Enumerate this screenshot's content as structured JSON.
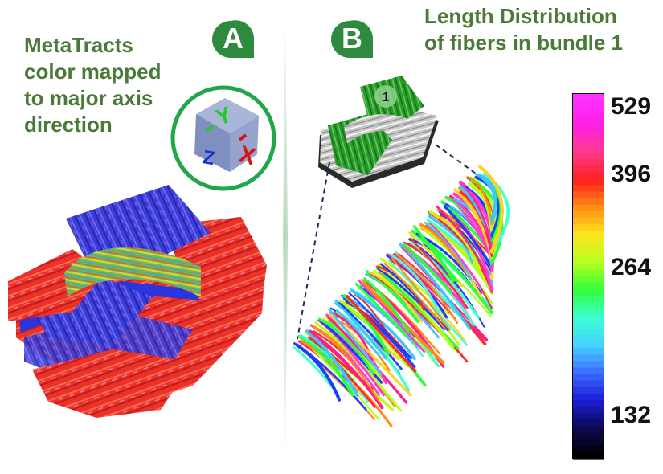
{
  "panel_a": {
    "badge": "A",
    "title_lines": [
      "MetaTracts",
      "color mapped",
      "to major axis",
      "direction"
    ],
    "axis_labels": {
      "y": "Y",
      "x": "X",
      "z": "Z"
    }
  },
  "panel_b": {
    "badge": "B",
    "title_lines": [
      "Length Distribution",
      "of fibers in bundle 1"
    ],
    "bundle_marker": "1"
  },
  "colorbar": {
    "tick_labels": [
      "529",
      "396",
      "264",
      "132"
    ],
    "stops": [
      "#000000",
      "#0a0a50",
      "#1c1cd8",
      "#3a6cff",
      "#46d2ff",
      "#3cffd2",
      "#32ff3c",
      "#b4ff1e",
      "#ffe61e",
      "#ff8c14",
      "#ff1e1e",
      "#ff3c8c",
      "#ff1ee6",
      "#ff32ff"
    ]
  },
  "colors": {
    "accent_green": "#2e8b3e",
    "title_green": "#4a7a38",
    "divider": "#c9dfcf"
  }
}
